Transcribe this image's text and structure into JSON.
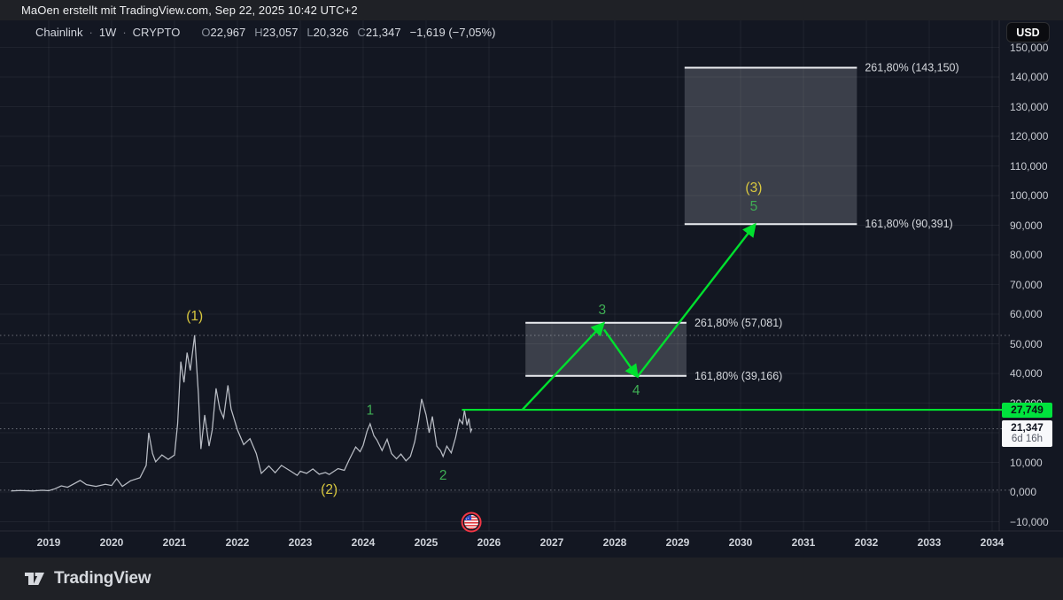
{
  "header": {
    "attribution": "MaOen erstellt mit TradingView.com, Sep 22, 2025 10:42 UTC+2"
  },
  "legend": {
    "symbol": "Chainlink",
    "separator": "·",
    "interval": "1W",
    "market": "CRYPTO",
    "ohlc": [
      {
        "prefix": "O",
        "value": "22,967"
      },
      {
        "prefix": "H",
        "value": "23,057"
      },
      {
        "prefix": "L",
        "value": "20,326"
      },
      {
        "prefix": "C",
        "value": "21,347"
      }
    ],
    "change": "−1,619 (−7,05%)"
  },
  "currency_button": "USD",
  "price_scale": {
    "ticks": [
      {
        "value": 150,
        "label": "150,000"
      },
      {
        "value": 140,
        "label": "140,000"
      },
      {
        "value": 130,
        "label": "130,000"
      },
      {
        "value": 120,
        "label": "120,000"
      },
      {
        "value": 110,
        "label": "110,000"
      },
      {
        "value": 100,
        "label": "100,000"
      },
      {
        "value": 90,
        "label": "90,000"
      },
      {
        "value": 80,
        "label": "80,000"
      },
      {
        "value": 70,
        "label": "70,000"
      },
      {
        "value": 60,
        "label": "60,000"
      },
      {
        "value": 50,
        "label": "50,000"
      },
      {
        "value": 40,
        "label": "40,000"
      },
      {
        "value": 30,
        "label": "30,000"
      },
      {
        "value": 20,
        "label": "20,000"
      },
      {
        "value": 10,
        "label": "10,000"
      },
      {
        "value": 0,
        "label": "0,000"
      },
      {
        "value": -10,
        "label": "−10,000"
      }
    ],
    "line_label": {
      "price": 27.749,
      "label": "27,749"
    },
    "last_label": {
      "price": 21.347,
      "label": "21,347",
      "countdown": "6d 16h"
    }
  },
  "time_scale": {
    "years": [
      2019,
      2020,
      2021,
      2022,
      2023,
      2024,
      2025,
      2026,
      2027,
      2028,
      2029,
      2030,
      2031,
      2032,
      2033,
      2034
    ]
  },
  "footer": {
    "brand": "TradingView"
  },
  "colors": {
    "accent_green": "#00e02e",
    "label_green_bg": "#00e33d",
    "wave_digit_green": "#3fae54",
    "wave_yellow": "#d9c83f",
    "box_fill": "rgba(205,209,219,0.22)",
    "box_border": "#eceef2",
    "fib_text": "#d5d8dd",
    "price_line": "#b9bdc5",
    "grid": "rgba(255,255,255,0.055)",
    "dotted": "rgba(178,181,190,0.55)",
    "flag_ring_red": "#f23645"
  },
  "chart_data": {
    "type": "line",
    "symbol": "Chainlink",
    "interval": "1W",
    "market": "CRYPTO",
    "currency": "USD",
    "ohlc": {
      "open": 22.967,
      "high": 23.057,
      "low": 20.326,
      "close": 21.347,
      "change": -1.619,
      "change_pct": -7.05
    },
    "x_range": [
      2018.4,
      2034.2
    ],
    "y_range": [
      -16,
      156
    ],
    "grid": true,
    "price_history": [
      [
        2018.4,
        0.35
      ],
      [
        2018.55,
        0.55
      ],
      [
        2018.75,
        0.4
      ],
      [
        2018.9,
        0.6
      ],
      [
        2019.0,
        0.45
      ],
      [
        2019.1,
        1.1
      ],
      [
        2019.2,
        2.1
      ],
      [
        2019.3,
        1.6
      ],
      [
        2019.5,
        3.9
      ],
      [
        2019.6,
        2.5
      ],
      [
        2019.75,
        1.9
      ],
      [
        2019.9,
        2.6
      ],
      [
        2020.0,
        2.2
      ],
      [
        2020.08,
        4.5
      ],
      [
        2020.17,
        1.9
      ],
      [
        2020.3,
        3.8
      ],
      [
        2020.45,
        4.8
      ],
      [
        2020.55,
        9.0
      ],
      [
        2020.59,
        20.0
      ],
      [
        2020.65,
        13.0
      ],
      [
        2020.7,
        10.2
      ],
      [
        2020.8,
        12.5
      ],
      [
        2020.9,
        11.0
      ],
      [
        2021.0,
        12.5
      ],
      [
        2021.05,
        23.0
      ],
      [
        2021.1,
        44.0
      ],
      [
        2021.15,
        37.0
      ],
      [
        2021.2,
        47.0
      ],
      [
        2021.25,
        41.0
      ],
      [
        2021.32,
        52.9
      ],
      [
        2021.38,
        33.0
      ],
      [
        2021.42,
        14.5
      ],
      [
        2021.48,
        26.0
      ],
      [
        2021.55,
        15.5
      ],
      [
        2021.6,
        21.0
      ],
      [
        2021.66,
        35.0
      ],
      [
        2021.72,
        28.0
      ],
      [
        2021.78,
        25.0
      ],
      [
        2021.85,
        36.0
      ],
      [
        2021.9,
        28.0
      ],
      [
        2022.0,
        21.0
      ],
      [
        2022.1,
        16.0
      ],
      [
        2022.2,
        18.0
      ],
      [
        2022.3,
        13.0
      ],
      [
        2022.38,
        6.3
      ],
      [
        2022.5,
        8.8
      ],
      [
        2022.6,
        6.5
      ],
      [
        2022.7,
        9.0
      ],
      [
        2022.85,
        7.0
      ],
      [
        2022.95,
        5.6
      ],
      [
        2023.0,
        7.0
      ],
      [
        2023.1,
        6.3
      ],
      [
        2023.2,
        7.8
      ],
      [
        2023.3,
        6.0
      ],
      [
        2023.4,
        6.6
      ],
      [
        2023.46,
        5.9
      ],
      [
        2023.6,
        7.9
      ],
      [
        2023.7,
        7.3
      ],
      [
        2023.78,
        11.0
      ],
      [
        2023.88,
        15.2
      ],
      [
        2023.95,
        13.6
      ],
      [
        2024.0,
        15.8
      ],
      [
        2024.06,
        20.5
      ],
      [
        2024.11,
        23.0
      ],
      [
        2024.17,
        19.0
      ],
      [
        2024.22,
        17.5
      ],
      [
        2024.3,
        14.0
      ],
      [
        2024.38,
        17.8
      ],
      [
        2024.45,
        13.0
      ],
      [
        2024.53,
        11.2
      ],
      [
        2024.6,
        12.8
      ],
      [
        2024.68,
        10.5
      ],
      [
        2024.75,
        12.0
      ],
      [
        2024.82,
        17.0
      ],
      [
        2024.88,
        24.0
      ],
      [
        2024.93,
        31.4
      ],
      [
        2025.0,
        26.0
      ],
      [
        2025.05,
        20.0
      ],
      [
        2025.1,
        25.5
      ],
      [
        2025.17,
        15.5
      ],
      [
        2025.23,
        14.0
      ],
      [
        2025.27,
        12.0
      ],
      [
        2025.33,
        15.5
      ],
      [
        2025.4,
        13.2
      ],
      [
        2025.47,
        18.5
      ],
      [
        2025.53,
        24.5
      ],
      [
        2025.58,
        23.0
      ],
      [
        2025.61,
        27.6
      ],
      [
        2025.65,
        22.5
      ],
      [
        2025.68,
        24.8
      ],
      [
        2025.71,
        20.4
      ],
      [
        2025.73,
        21.35
      ]
    ],
    "horizontal_ray": {
      "price": 27.749,
      "t_start": 2025.57
    },
    "dotted_levels": [
      52.84,
      21.347,
      0.62
    ],
    "fib_boxes": [
      {
        "t1": 2026.58,
        "t2": 2029.14,
        "p_bottom": 39.166,
        "p_top": 57.081,
        "label_top": "261,80% (57,081)",
        "label_bottom": "161,80% (39,166)"
      },
      {
        "t1": 2029.11,
        "t2": 2031.85,
        "p_bottom": 90.391,
        "p_top": 143.15,
        "label_top": "261,80% (143,150)",
        "label_bottom": "161,80% (90,391)"
      }
    ],
    "projection_arrows": [
      {
        "from": {
          "t": 2026.53,
          "p": 27.749
        },
        "to": {
          "t": 2027.8,
          "p": 56.4
        }
      },
      {
        "from": {
          "t": 2027.83,
          "p": 54.8
        },
        "to": {
          "t": 2028.34,
          "p": 39.5
        }
      },
      {
        "from": {
          "t": 2028.36,
          "p": 38.9
        },
        "to": {
          "t": 2030.21,
          "p": 89.7
        }
      }
    ],
    "wave_labels": [
      {
        "text": "(1)",
        "t": 2021.32,
        "price": 59.4,
        "color": "yellow"
      },
      {
        "text": "(2)",
        "t": 2023.46,
        "price": 0.9,
        "color": "yellow"
      },
      {
        "text": "1",
        "t": 2024.11,
        "price": 27.6,
        "color": "green"
      },
      {
        "text": "2",
        "t": 2025.27,
        "price": 5.7,
        "color": "green"
      },
      {
        "text": "3",
        "t": 2027.8,
        "price": 61.5,
        "color": "green"
      },
      {
        "text": "4",
        "t": 2028.34,
        "price": 34.3,
        "color": "green"
      },
      {
        "text": "5",
        "t": 2030.21,
        "price": 96.4,
        "color": "green"
      },
      {
        "text": "(3)",
        "t": 2030.21,
        "price": 102.7,
        "color": "yellow"
      }
    ],
    "event_icon": {
      "name": "us-flag-event-icon",
      "t": 2025.72,
      "price": -10.15
    }
  }
}
